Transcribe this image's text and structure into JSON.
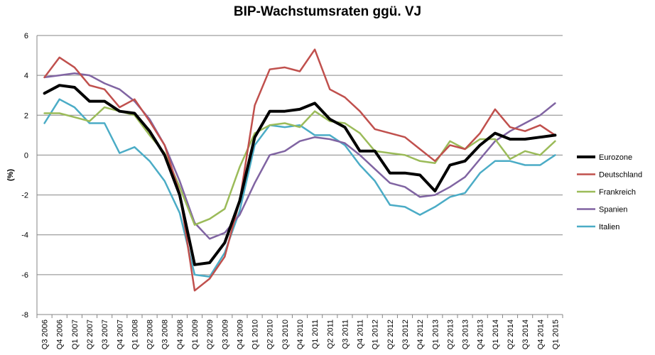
{
  "chart_data": {
    "type": "line",
    "title": "BIP-Wachstumsraten ggü. VJ",
    "xlabel": "",
    "ylabel": "(%)",
    "ylim": [
      -8,
      6
    ],
    "yticks": [
      -8,
      -6,
      -4,
      -2,
      0,
      2,
      4,
      6
    ],
    "grid": true,
    "legend_position": "right",
    "categories": [
      "Q3 2006",
      "Q4 2006",
      "Q1 2007",
      "Q2 2007",
      "Q3 2007",
      "Q4 2007",
      "Q1 2008",
      "Q2 2008",
      "Q3 2008",
      "Q4 2008",
      "Q1 2009",
      "Q2 2009",
      "Q3 2009",
      "Q4 2009",
      "Q1 2010",
      "Q2 2010",
      "Q3 2010",
      "Q4 2010",
      "Q1 2011",
      "Q2 2011",
      "Q3 2011",
      "Q4 2011",
      "Q1 2012",
      "Q2 2012",
      "Q3 2012",
      "Q4 2012",
      "Q1 2013",
      "Q2 2013",
      "Q3 2013",
      "Q4 2013",
      "Q1 2014",
      "Q2 2014",
      "Q3 2014",
      "Q4 2014",
      "Q1 2015"
    ],
    "series": [
      {
        "name": "Eurozone",
        "color": "#000000",
        "width": 4,
        "values": [
          3.1,
          3.5,
          3.4,
          2.7,
          2.7,
          2.2,
          2.1,
          1.2,
          0.0,
          -2.0,
          -5.5,
          -5.4,
          -4.4,
          -2.3,
          0.9,
          2.2,
          2.2,
          2.3,
          2.6,
          1.8,
          1.4,
          0.2,
          0.2,
          -0.9,
          -0.9,
          -1.0,
          -1.8,
          -0.5,
          -0.3,
          0.5,
          1.1,
          0.8,
          0.8,
          0.9,
          1.0
        ]
      },
      {
        "name": "Deutschland",
        "color": "#c0504d",
        "width": 2.5,
        "values": [
          3.9,
          4.9,
          4.4,
          3.5,
          3.3,
          2.4,
          2.8,
          1.7,
          0.5,
          -1.9,
          -6.8,
          -6.2,
          -5.1,
          -2.3,
          2.5,
          4.3,
          4.4,
          4.2,
          5.3,
          3.3,
          2.9,
          2.2,
          1.3,
          1.1,
          0.9,
          0.3,
          -0.3,
          0.5,
          0.3,
          1.1,
          2.3,
          1.4,
          1.2,
          1.5,
          1.0
        ]
      },
      {
        "name": "Frankreich",
        "color": "#9bbb59",
        "width": 2.5,
        "values": [
          2.1,
          2.1,
          1.9,
          1.7,
          2.4,
          2.2,
          2.0,
          1.0,
          0.1,
          -1.6,
          -3.5,
          -3.2,
          -2.7,
          -0.6,
          1.1,
          1.5,
          1.6,
          1.4,
          2.2,
          1.7,
          1.6,
          1.1,
          0.2,
          0.1,
          0.0,
          -0.3,
          -0.4,
          0.7,
          0.3,
          0.8,
          0.8,
          -0.2,
          0.2,
          0.0,
          0.7
        ]
      },
      {
        "name": "Spanien",
        "color": "#8064a2",
        "width": 2.5,
        "values": [
          3.9,
          4.0,
          4.1,
          4.0,
          3.6,
          3.3,
          2.7,
          1.8,
          0.5,
          -1.3,
          -3.4,
          -4.2,
          -3.9,
          -3.0,
          -1.4,
          0.0,
          0.2,
          0.7,
          0.9,
          0.8,
          0.6,
          0.0,
          -0.7,
          -1.4,
          -1.6,
          -2.1,
          -2.0,
          -1.6,
          -1.1,
          -0.2,
          0.7,
          1.2,
          1.6,
          2.0,
          2.6
        ]
      },
      {
        "name": "Italien",
        "color": "#4bacc6",
        "width": 2.5,
        "values": [
          1.6,
          2.8,
          2.4,
          1.6,
          1.6,
          0.1,
          0.4,
          -0.3,
          -1.3,
          -2.9,
          -6.0,
          -6.1,
          -4.9,
          -2.8,
          0.5,
          1.5,
          1.4,
          1.5,
          1.0,
          1.0,
          0.5,
          -0.5,
          -1.3,
          -2.5,
          -2.6,
          -3.0,
          -2.6,
          -2.1,
          -1.9,
          -0.9,
          -0.3,
          -0.3,
          -0.5,
          -0.5,
          0.0
        ]
      }
    ]
  }
}
